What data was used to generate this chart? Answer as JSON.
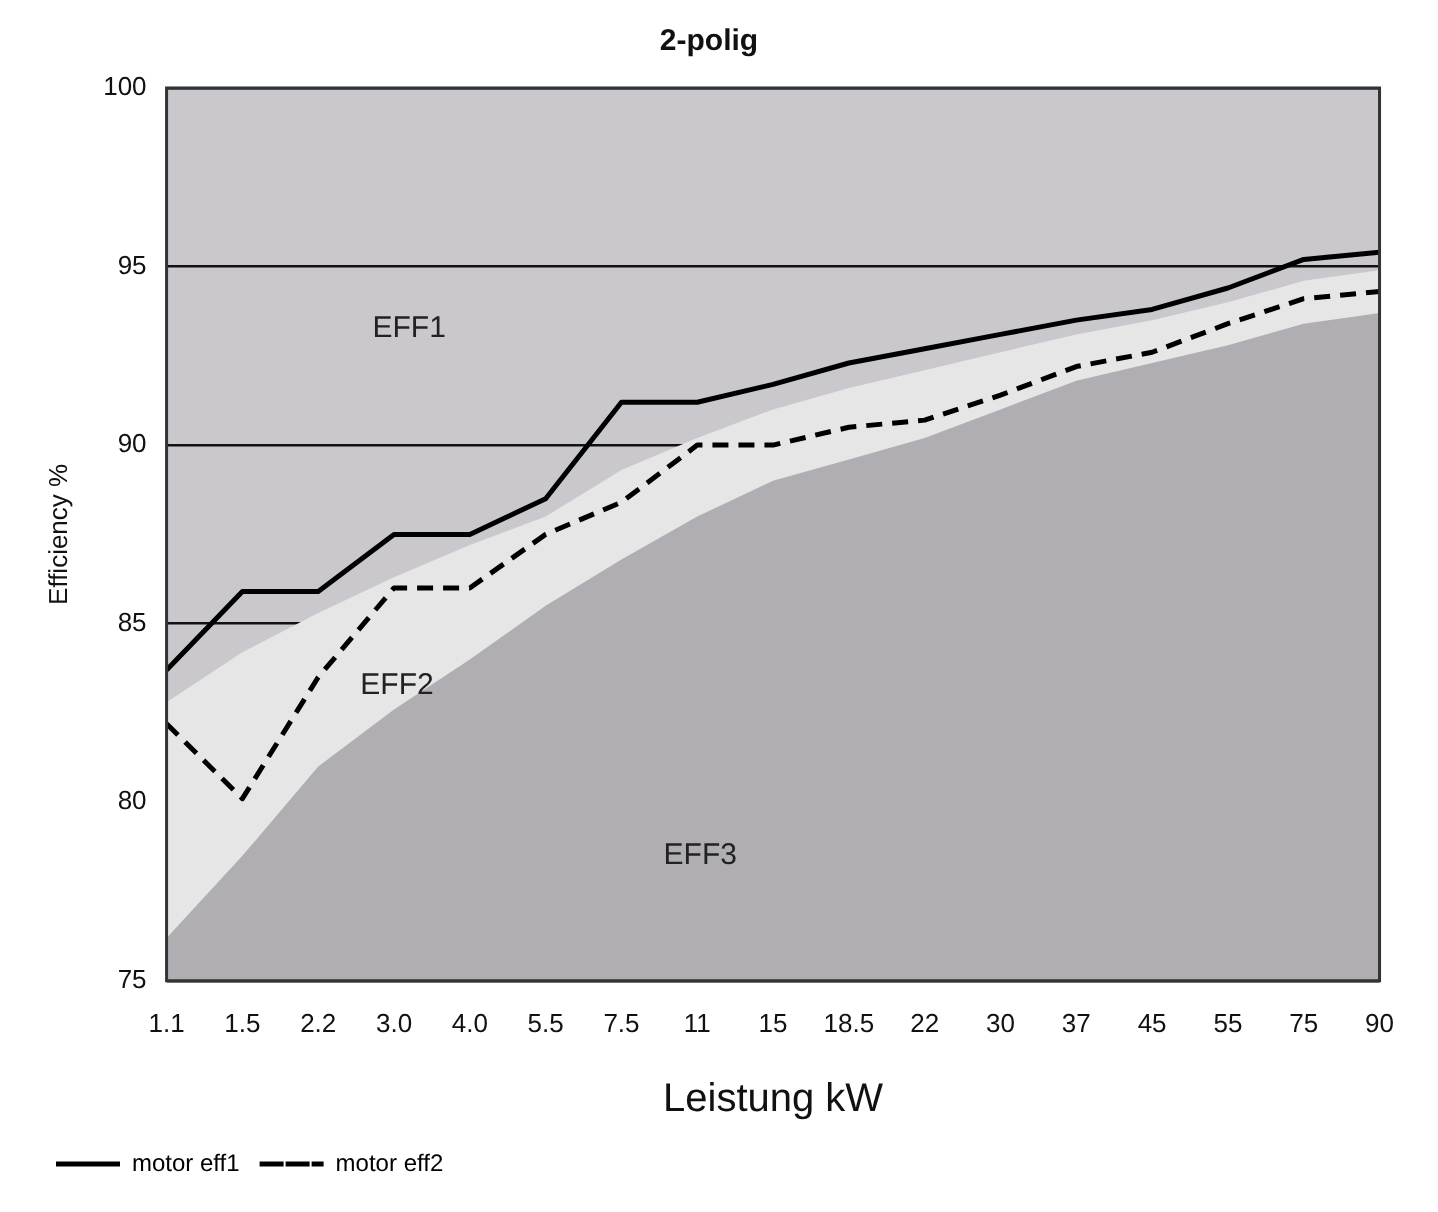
{
  "chart_data": {
    "type": "line",
    "title": "2-polig",
    "xlabel": "Leistung kW",
    "ylabel": "Efficiency %",
    "categories": [
      "1.1",
      "1.5",
      "2.2",
      "3.0",
      "4.0",
      "5.5",
      "7.5",
      "11",
      "15",
      "18.5",
      "22",
      "30",
      "37",
      "45",
      "55",
      "75",
      "90"
    ],
    "series": [
      {
        "name": "motor eff1",
        "color": "#000000",
        "line_style": "solid",
        "values": [
          83.7,
          85.9,
          85.9,
          87.5,
          87.5,
          88.5,
          91.2,
          91.2,
          91.7,
          92.3,
          92.7,
          93.1,
          93.5,
          93.8,
          94.4,
          95.2,
          95.4
        ]
      },
      {
        "name": "motor eff2",
        "color": "#000000",
        "line_style": "dashed",
        "values": [
          82.2,
          80.1,
          83.5,
          86.0,
          86.0,
          87.5,
          88.4,
          90.0,
          90.0,
          90.5,
          90.7,
          91.4,
          92.2,
          92.6,
          93.4,
          94.1,
          94.3
        ]
      },
      {
        "type": "area",
        "color": "#b0aeb2",
        "values": [
          76.2,
          78.5,
          81.0,
          82.6,
          84.0,
          85.5,
          86.8,
          88.0,
          89.0,
          89.6,
          90.2,
          91.0,
          91.8,
          92.3,
          92.8,
          93.4,
          93.7
        ]
      },
      {
        "type": "area",
        "color": "#e6e6e6",
        "values": [
          82.8,
          84.2,
          85.3,
          86.3,
          87.2,
          88.0,
          89.3,
          90.2,
          91.0,
          91.6,
          92.1,
          92.6,
          93.1,
          93.5,
          94.0,
          94.6,
          94.9
        ]
      }
    ],
    "annotations": [
      "EFF1",
      "EFF2",
      "EFF3"
    ],
    "ylim": [
      75,
      100
    ],
    "yticks": [
      75,
      80,
      85,
      90,
      95,
      100
    ],
    "grid": "y",
    "legend": "bottom left",
    "marker": "none"
  }
}
